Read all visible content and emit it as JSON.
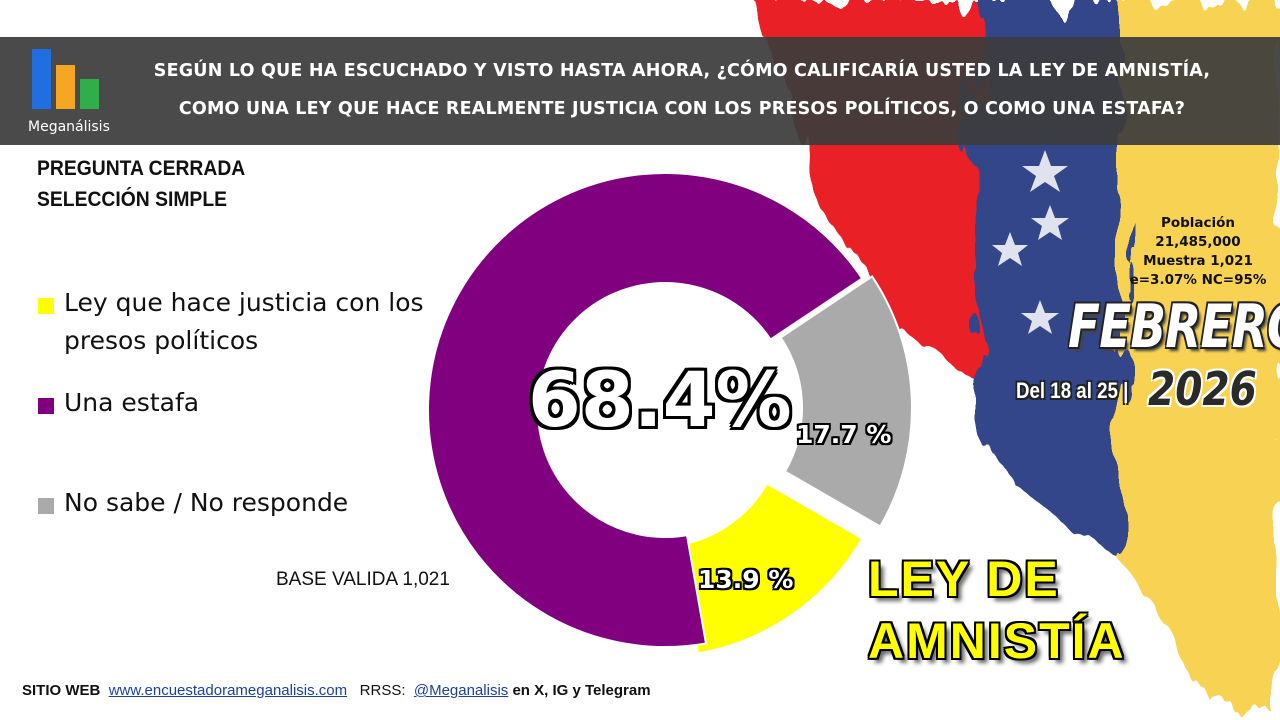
{
  "brand": {
    "name": "Meganálisis",
    "colors": {
      "blue": "#1f6fe0",
      "orange": "#f5a623",
      "green": "#2fae4a"
    }
  },
  "header": {
    "question_line1": "SEGÚN LO QUE HA ESCUCHADO Y VISTO HASTA AHORA, ¿CÓMO CALIFICARÍA USTED LA LEY DE AMNISTÍA,",
    "question_line2": "COMO UNA LEY QUE HACE REALMENTE JUSTICIA CON LOS PRESOS POLÍTICOS, O COMO UNA ESTAFA?"
  },
  "question_type": {
    "line1": "PREGUNTA  CERRADA",
    "line2": "SELECCIÓN SIMPLE"
  },
  "chart_data": {
    "type": "pie",
    "donut": true,
    "categories": [
      "Ley que hace justicia con los presos políticos",
      "Una estafa",
      "No sabe / No responde"
    ],
    "values": [
      13.9,
      68.4,
      17.7
    ],
    "colors": [
      "#ffff00",
      "#800080",
      "#aaaaaa"
    ],
    "labels": [
      "13.9 %",
      "68.4%",
      "17.7 %"
    ],
    "legend": [
      "Ley que hace justicia con los presos políticos",
      "Una estafa",
      "No sabe / No responde"
    ],
    "legend_position": "left"
  },
  "base_text": "BASE VALIDA 1,021",
  "sample": {
    "line1": "Población",
    "line2": "21,485,000",
    "line3": "Muestra 1,021",
    "line4": "e=3.07%  NC=95%"
  },
  "period": {
    "month": "FEBRERO",
    "range": "Del 18 al 25 |",
    "year": "2026"
  },
  "topic": {
    "line1": "LEY DE",
    "line2": "AMNISTÍA"
  },
  "footer": {
    "site_label": "SITIO WEB",
    "site_url": "www.encuestadorameganalisis.com",
    "social_label": "RRSS:",
    "social_handle": "@Meganalisis",
    "social_suffix": "en X, IG y Telegram"
  }
}
